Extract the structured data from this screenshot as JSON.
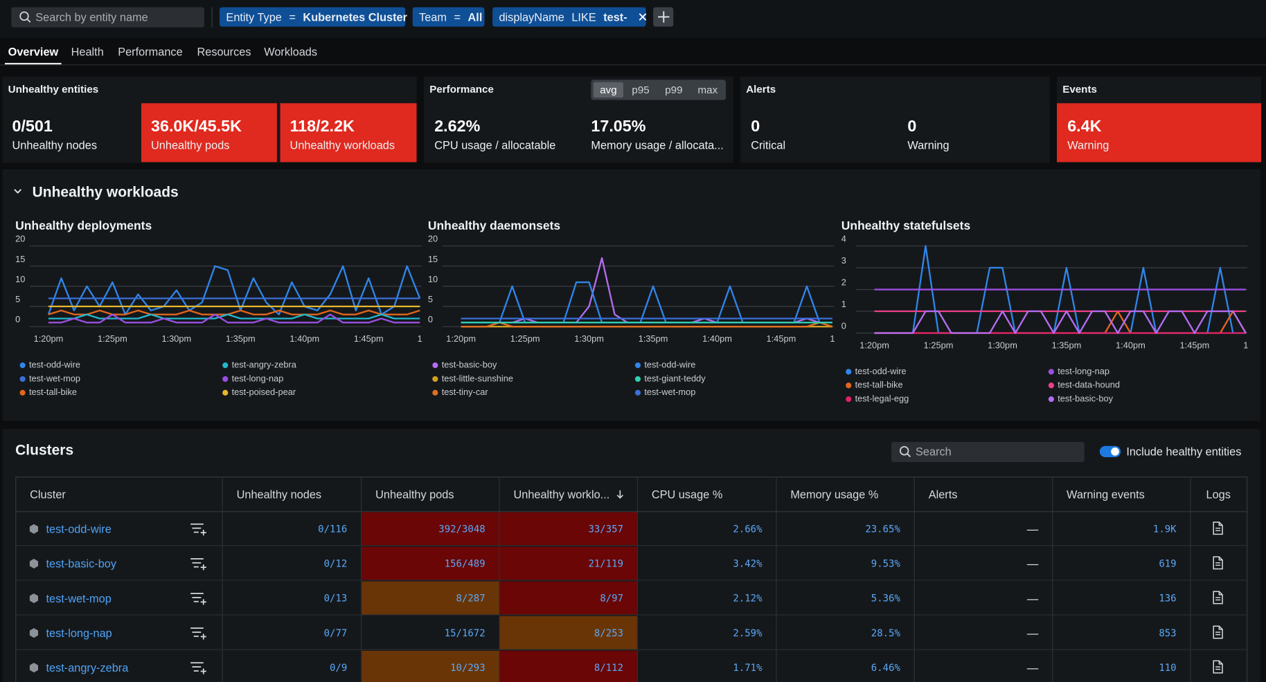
{
  "search_placeholder": "Search by entity name",
  "filters": [
    {
      "key": "Entity Type",
      "op": "=",
      "value": "Kubernetes Cluster"
    },
    {
      "key": "Team",
      "op": "=",
      "value": "All"
    },
    {
      "key": "displayName",
      "op": "LIKE",
      "value": "test-"
    }
  ],
  "tabs": [
    "Overview",
    "Health",
    "Performance",
    "Resources",
    "Workloads"
  ],
  "selected_tab": 0,
  "summary": {
    "unhealthy_entities": {
      "title": "Unhealthy entities",
      "tiles": [
        {
          "value": "0/501",
          "label": "Unhealthy nodes",
          "alert": false
        },
        {
          "value": "36.0K/45.5K",
          "label": "Unhealthy pods",
          "alert": true
        },
        {
          "value": "118/2.2K",
          "label": "Unhealthy workloads",
          "alert": true
        }
      ]
    },
    "performance": {
      "title": "Performance",
      "modes": [
        "avg",
        "p95",
        "p99",
        "max"
      ],
      "selected": 0,
      "tiles": [
        {
          "value": "2.62%",
          "label": "CPU usage / allocatable",
          "alert": false
        },
        {
          "value": "17.05%",
          "label": "Memory usage / allocata...",
          "alert": false
        }
      ]
    },
    "alerts": {
      "title": "Alerts",
      "tiles": [
        {
          "value": "0",
          "label": "Critical",
          "alert": false
        },
        {
          "value": "0",
          "label": "Warning",
          "alert": false
        }
      ]
    },
    "events": {
      "title": "Events",
      "tiles": [
        {
          "value": "6.4K",
          "label": "Warning",
          "alert": true
        }
      ]
    }
  },
  "workloads_title": "Unhealthy workloads",
  "chart_data": [
    {
      "type": "line",
      "title": "Unhealthy deployments",
      "categories": [
        "1:20pm",
        null,
        null,
        null,
        null,
        "1:25pm",
        null,
        null,
        null,
        null,
        "1:30pm",
        null,
        null,
        null,
        null,
        "1:35pm",
        null,
        null,
        null,
        null,
        "1:40pm",
        null,
        null,
        null,
        null,
        "1:45pm",
        null,
        null,
        null,
        "1"
      ],
      "ylim": [
        0,
        20
      ],
      "yticks": [
        0,
        5,
        10,
        15,
        20
      ],
      "grid": true,
      "series": [
        {
          "name": "test-odd-wire",
          "color": "#2f86ea",
          "values": [
            3,
            12,
            4,
            10,
            5,
            11,
            3,
            8,
            4,
            5,
            9,
            4,
            6,
            15,
            14,
            4,
            12,
            6,
            3,
            11,
            5,
            4,
            8,
            15,
            4,
            12,
            3,
            5,
            15,
            7
          ]
        },
        {
          "name": "test-wet-mop",
          "color": "#3b6fd8",
          "values": [
            7,
            7,
            7,
            7,
            7,
            7,
            7,
            7,
            7,
            7,
            7,
            7,
            7,
            7,
            7,
            7,
            7,
            7,
            7,
            7,
            7,
            7,
            7,
            7,
            7,
            7,
            7,
            7,
            7,
            7
          ]
        },
        {
          "name": "test-tall-bike",
          "color": "#e2661c",
          "values": [
            3,
            4,
            3,
            3,
            4,
            3,
            3,
            4,
            3,
            3,
            3,
            4,
            3,
            3,
            3,
            4,
            3,
            3,
            4,
            3,
            3,
            3,
            4,
            3,
            3,
            4,
            3,
            3,
            3,
            4
          ]
        },
        {
          "name": "test-angry-zebra",
          "color": "#22b8cf",
          "values": [
            2,
            2,
            2,
            3,
            2,
            2,
            2,
            2,
            3,
            2,
            2,
            2,
            2,
            2,
            3,
            2,
            2,
            2,
            2,
            2,
            3,
            2,
            2,
            2,
            2,
            2,
            3,
            2,
            2,
            2
          ]
        },
        {
          "name": "test-long-nap",
          "color": "#9b4fe2",
          "values": [
            1,
            1,
            2,
            1,
            1,
            3,
            1,
            1,
            1,
            2,
            1,
            1,
            1,
            3,
            1,
            1,
            1,
            2,
            1,
            1,
            1,
            1,
            3,
            1,
            1,
            1,
            2,
            1,
            1,
            1
          ]
        },
        {
          "name": "test-poised-pear",
          "color": "#e8b82a",
          "values": [
            5,
            5,
            5,
            5,
            5,
            5,
            5,
            5,
            5,
            5,
            5,
            5,
            5,
            5,
            5,
            5,
            5,
            5,
            5,
            5,
            5,
            5,
            5,
            5,
            5,
            5,
            5,
            5,
            5,
            5
          ]
        }
      ]
    },
    {
      "type": "line",
      "title": "Unhealthy daemonsets",
      "categories": [
        "1:20pm",
        null,
        null,
        null,
        null,
        "1:25pm",
        null,
        null,
        null,
        null,
        "1:30pm",
        null,
        null,
        null,
        null,
        "1:35pm",
        null,
        null,
        null,
        null,
        "1:40pm",
        null,
        null,
        null,
        null,
        "1:45pm",
        null,
        null,
        null,
        "1"
      ],
      "ylim": [
        0,
        20
      ],
      "yticks": [
        0,
        5,
        10,
        15,
        20
      ],
      "grid": true,
      "series": [
        {
          "name": "test-basic-boy",
          "color": "#b46cf0",
          "values": [
            1,
            1,
            1,
            1,
            1,
            2,
            1,
            1,
            1,
            1,
            5,
            17,
            3,
            1,
            1,
            1,
            1,
            1,
            1,
            2,
            1,
            1,
            1,
            1,
            1,
            1,
            1,
            2,
            1,
            1
          ]
        },
        {
          "name": "test-little-sunshine",
          "color": "#d4a020",
          "values": [
            0,
            0,
            0,
            0,
            0,
            0,
            0,
            0,
            0,
            0,
            0,
            0,
            0,
            0,
            0,
            0,
            0,
            0,
            0,
            0,
            0,
            0,
            0,
            0,
            0,
            0,
            0,
            0,
            0,
            0
          ]
        },
        {
          "name": "test-tiny-car",
          "color": "#e07020",
          "values": [
            0,
            0,
            0,
            1,
            0,
            0,
            0,
            0,
            0,
            0,
            0,
            0,
            0,
            0,
            0,
            0,
            0,
            0,
            0,
            0,
            0,
            0,
            0,
            0,
            0,
            0,
            0,
            0,
            1,
            0
          ]
        },
        {
          "name": "test-odd-wire",
          "color": "#2f86ea",
          "values": [
            1,
            1,
            1,
            1,
            10,
            1,
            1,
            1,
            1,
            11,
            11,
            1,
            1,
            1,
            1,
            10,
            1,
            1,
            1,
            1,
            1,
            10,
            1,
            1,
            1,
            1,
            1,
            10,
            1,
            1
          ]
        },
        {
          "name": "test-giant-teddy",
          "color": "#2ed1b0",
          "values": [
            1,
            1,
            1,
            1,
            1,
            1,
            1,
            1,
            1,
            1,
            1,
            1,
            1,
            1,
            1,
            1,
            1,
            1,
            1,
            1,
            1,
            1,
            1,
            1,
            1,
            1,
            1,
            1,
            1,
            1
          ]
        },
        {
          "name": "test-wet-mop",
          "color": "#3b6fd8",
          "values": [
            2,
            2,
            2,
            2,
            2,
            2,
            2,
            2,
            2,
            2,
            2,
            2,
            2,
            2,
            2,
            2,
            2,
            2,
            2,
            2,
            2,
            2,
            2,
            2,
            2,
            2,
            2,
            2,
            2,
            2
          ]
        }
      ]
    },
    {
      "type": "line",
      "title": "Unhealthy statefulsets",
      "categories": [
        "1:20pm",
        null,
        null,
        null,
        null,
        "1:25pm",
        null,
        null,
        null,
        null,
        "1:30pm",
        null,
        null,
        null,
        null,
        "1:35pm",
        null,
        null,
        null,
        null,
        "1:40pm",
        null,
        null,
        null,
        null,
        "1:45pm",
        null,
        null,
        null,
        "1"
      ],
      "ylim": [
        0,
        4
      ],
      "yticks": [
        0,
        1,
        2,
        3,
        4
      ],
      "grid": true,
      "series": [
        {
          "name": "test-odd-wire",
          "color": "#2f86ea",
          "values": [
            0,
            0,
            0,
            0,
            4,
            0,
            0,
            0,
            0,
            3,
            3,
            0,
            0,
            0,
            0,
            3,
            0,
            0,
            0,
            0,
            0,
            3,
            0,
            0,
            0,
            0,
            0,
            3,
            0,
            0
          ]
        },
        {
          "name": "test-tall-bike",
          "color": "#e2661c",
          "values": [
            0,
            0,
            0,
            0,
            0,
            0,
            0,
            0,
            0,
            0,
            0,
            0,
            0,
            0,
            0,
            0,
            0,
            0,
            0,
            1,
            0,
            0,
            0,
            0,
            0,
            0,
            0,
            0,
            1,
            0
          ]
        },
        {
          "name": "test-legal-egg",
          "color": "#e0206a",
          "values": [
            0,
            0,
            0,
            0,
            0,
            0,
            0,
            0,
            0,
            0,
            0,
            0,
            0,
            0,
            0,
            0,
            0,
            0,
            0,
            0,
            0,
            0,
            0,
            0,
            0,
            0,
            0,
            0,
            0,
            0
          ]
        },
        {
          "name": "test-long-nap",
          "color": "#9b4fe2",
          "values": [
            2,
            2,
            2,
            2,
            2,
            2,
            2,
            2,
            2,
            2,
            2,
            2,
            2,
            2,
            2,
            2,
            2,
            2,
            2,
            2,
            2,
            2,
            2,
            2,
            2,
            2,
            2,
            2,
            2,
            2
          ]
        },
        {
          "name": "test-data-hound",
          "color": "#f0408a",
          "values": [
            1,
            1,
            1,
            1,
            1,
            1,
            1,
            1,
            1,
            1,
            1,
            1,
            1,
            1,
            1,
            1,
            1,
            1,
            1,
            1,
            1,
            1,
            1,
            1,
            1,
            1,
            1,
            1,
            1,
            1
          ]
        },
        {
          "name": "test-basic-boy",
          "color": "#b46cf0",
          "values": [
            0,
            0,
            0,
            0,
            1,
            1,
            0,
            0,
            0,
            0,
            1,
            0,
            1,
            1,
            0,
            1,
            0,
            1,
            1,
            0,
            1,
            1,
            0,
            1,
            1,
            0,
            1,
            1,
            1,
            0
          ]
        }
      ]
    }
  ],
  "clusters": {
    "title": "Clusters",
    "search_placeholder": "Search",
    "toggle_label": "Include healthy entities",
    "toggle_on": true,
    "columns": [
      "Cluster",
      "Unhealthy nodes",
      "Unhealthy pods",
      "Unhealthy worklo...",
      "CPU usage %",
      "Memory usage %",
      "Alerts",
      "Warning events",
      "Logs"
    ],
    "sort_column": 3,
    "rows": [
      {
        "cells": [
          "test-odd-wire",
          "0/116",
          "392/3048",
          "33/357",
          "2.66%",
          "23.65%",
          "—",
          "1.9K"
        ],
        "pods_bg": "#6a0606",
        "workloads_bg": "#6a0606"
      },
      {
        "cells": [
          "test-basic-boy",
          "0/12",
          "156/489",
          "21/119",
          "3.42%",
          "9.53%",
          "—",
          "619"
        ],
        "pods_bg": "#6a0606",
        "workloads_bg": "#6a0606"
      },
      {
        "cells": [
          "test-wet-mop",
          "0/13",
          "8/287",
          "8/97",
          "2.12%",
          "5.36%",
          "—",
          "136"
        ],
        "pods_bg": "#6a3506",
        "workloads_bg": "#6a0606"
      },
      {
        "cells": [
          "test-long-nap",
          "0/77",
          "15/1672",
          "8/253",
          "2.59%",
          "28.5%",
          "—",
          "853"
        ],
        "pods_bg": null,
        "workloads_bg": "#6a3506"
      },
      {
        "cells": [
          "test-angry-zebra",
          "0/9",
          "10/293",
          "8/112",
          "1.71%",
          "6.46%",
          "—",
          "110"
        ],
        "pods_bg": "#6a3506",
        "workloads_bg": "#6a0606"
      }
    ]
  }
}
